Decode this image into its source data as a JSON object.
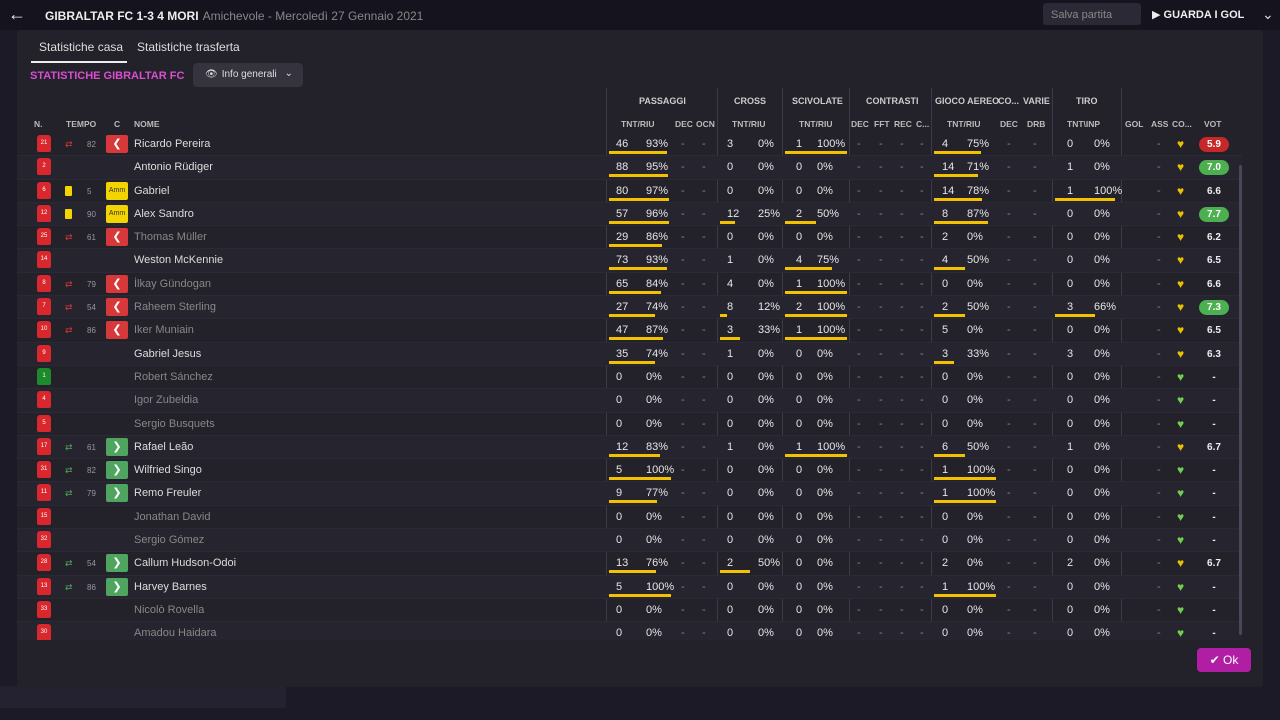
{
  "header": {
    "title": "GIBRALTAR FC 1-3 4 MORI",
    "subtitle": "Amichevole - Mercoledì 27 Gennaio 2021",
    "save_label": "Salva partita",
    "goals_label": "GUARDA I GOL"
  },
  "tabs": [
    "Statistiche casa",
    "Statistiche trasferta"
  ],
  "section_title": "STATISTICHE GIBRALTAR FC",
  "dropdown": {
    "value": "Info generali"
  },
  "groups": [
    "PASSAGGI",
    "CROSS",
    "SCIVOLATE",
    "CONTRASTI",
    "GIOCO AEREO",
    "CO...",
    "VARIE",
    "TIRO"
  ],
  "columns": [
    "N.",
    "TEMPO",
    "C",
    "NOME",
    "TNT/RIU",
    "DEC",
    "OCN",
    "TNT/RIU",
    "TNT/RIU",
    "DEC",
    "FFT",
    "REC",
    "C...",
    "TNT/RIU",
    "DEC",
    "DRB",
    "TNT\\INP",
    "GOL",
    "ASS",
    "CO...",
    "VOT"
  ],
  "ok_label": "Ok",
  "players": [
    {
      "num": "21",
      "time": "82",
      "name": "Ricardo Pereira",
      "pass": [
        "46",
        "93%"
      ],
      "cross": [
        "3",
        "0%"
      ],
      "sciv": [
        "1",
        "100%"
      ],
      "aereo": [
        "4",
        "75%"
      ],
      "tiro": [
        "0",
        "0%"
      ],
      "vote": "5.9",
      "vstyle": "red"
    },
    {
      "num": "2",
      "time": "",
      "name": "Antonio Rüdiger",
      "pass": [
        "88",
        "95%"
      ],
      "cross": [
        "0",
        "0%"
      ],
      "sciv": [
        "0",
        "0%"
      ],
      "aereo": [
        "14",
        "71%"
      ],
      "tiro": [
        "1",
        "0%"
      ],
      "vote": "7.0",
      "vstyle": "green"
    },
    {
      "num": "6",
      "time": "5",
      "name": "Gabriel",
      "pass": [
        "80",
        "97%"
      ],
      "cross": [
        "0",
        "0%"
      ],
      "sciv": [
        "0",
        "0%"
      ],
      "aereo": [
        "14",
        "78%"
      ],
      "tiro": [
        "1",
        "100%"
      ],
      "vote": "6.6",
      "vstyle": "plain"
    },
    {
      "num": "12",
      "time": "90",
      "name": "Alex Sandro",
      "pass": [
        "57",
        "96%"
      ],
      "cross": [
        "12",
        "25%"
      ],
      "sciv": [
        "2",
        "50%"
      ],
      "aereo": [
        "8",
        "87%"
      ],
      "tiro": [
        "0",
        "0%"
      ],
      "vote": "7.7",
      "vstyle": "green"
    },
    {
      "num": "25",
      "time": "61",
      "name": "Thomas Müller",
      "pass": [
        "29",
        "86%"
      ],
      "cross": [
        "0",
        "0%"
      ],
      "sciv": [
        "0",
        "0%"
      ],
      "aereo": [
        "2",
        "0%"
      ],
      "tiro": [
        "0",
        "0%"
      ],
      "vote": "6.2",
      "vstyle": "plain"
    },
    {
      "num": "14",
      "time": "",
      "name": "Weston McKennie",
      "pass": [
        "73",
        "93%"
      ],
      "cross": [
        "1",
        "0%"
      ],
      "sciv": [
        "4",
        "75%"
      ],
      "aereo": [
        "4",
        "50%"
      ],
      "tiro": [
        "0",
        "0%"
      ],
      "vote": "6.5",
      "vstyle": "plain"
    },
    {
      "num": "8",
      "time": "79",
      "name": "İlkay Gündogan",
      "pass": [
        "65",
        "84%"
      ],
      "cross": [
        "4",
        "0%"
      ],
      "sciv": [
        "1",
        "100%"
      ],
      "aereo": [
        "0",
        "0%"
      ],
      "tiro": [
        "0",
        "0%"
      ],
      "vote": "6.6",
      "vstyle": "plain"
    },
    {
      "num": "7",
      "time": "54",
      "name": "Raheem Sterling",
      "pass": [
        "27",
        "74%"
      ],
      "cross": [
        "8",
        "12%"
      ],
      "sciv": [
        "2",
        "100%"
      ],
      "aereo": [
        "2",
        "50%"
      ],
      "tiro": [
        "3",
        "66%"
      ],
      "vote": "7.3",
      "vstyle": "green"
    },
    {
      "num": "10",
      "time": "86",
      "name": "Iker Muniain",
      "pass": [
        "47",
        "87%"
      ],
      "cross": [
        "3",
        "33%"
      ],
      "sciv": [
        "1",
        "100%"
      ],
      "aereo": [
        "5",
        "0%"
      ],
      "tiro": [
        "0",
        "0%"
      ],
      "vote": "6.5",
      "vstyle": "plain"
    },
    {
      "num": "9",
      "time": "",
      "name": "Gabriel Jesus",
      "pass": [
        "35",
        "74%"
      ],
      "cross": [
        "1",
        "0%"
      ],
      "sciv": [
        "0",
        "0%"
      ],
      "aereo": [
        "3",
        "33%"
      ],
      "tiro": [
        "3",
        "0%"
      ],
      "vote": "6.3",
      "vstyle": "plain"
    },
    {
      "num": "1",
      "time": "",
      "name": "Robert Sánchez",
      "pass": [
        "0",
        "0%"
      ],
      "cross": [
        "0",
        "0%"
      ],
      "sciv": [
        "0",
        "0%"
      ],
      "aereo": [
        "0",
        "0%"
      ],
      "tiro": [
        "0",
        "0%"
      ],
      "vote": "-",
      "vstyle": "plain"
    },
    {
      "num": "4",
      "time": "",
      "name": "Igor Zubeldia",
      "pass": [
        "0",
        "0%"
      ],
      "cross": [
        "0",
        "0%"
      ],
      "sciv": [
        "0",
        "0%"
      ],
      "aereo": [
        "0",
        "0%"
      ],
      "tiro": [
        "0",
        "0%"
      ],
      "vote": "-",
      "vstyle": "plain"
    },
    {
      "num": "5",
      "time": "",
      "name": "Sergio Busquets",
      "pass": [
        "0",
        "0%"
      ],
      "cross": [
        "0",
        "0%"
      ],
      "sciv": [
        "0",
        "0%"
      ],
      "aereo": [
        "0",
        "0%"
      ],
      "tiro": [
        "0",
        "0%"
      ],
      "vote": "-",
      "vstyle": "plain"
    },
    {
      "num": "17",
      "time": "61",
      "name": "Rafael Leão",
      "pass": [
        "12",
        "83%"
      ],
      "cross": [
        "1",
        "0%"
      ],
      "sciv": [
        "1",
        "100%"
      ],
      "aereo": [
        "6",
        "50%"
      ],
      "tiro": [
        "1",
        "0%"
      ],
      "vote": "6.7",
      "vstyle": "plain"
    },
    {
      "num": "31",
      "time": "82",
      "name": "Wilfried Singo",
      "pass": [
        "5",
        "100%"
      ],
      "cross": [
        "0",
        "0%"
      ],
      "sciv": [
        "0",
        "0%"
      ],
      "aereo": [
        "1",
        "100%"
      ],
      "tiro": [
        "0",
        "0%"
      ],
      "vote": "-",
      "vstyle": "plain"
    },
    {
      "num": "11",
      "time": "79",
      "name": "Remo Freuler",
      "pass": [
        "9",
        "77%"
      ],
      "cross": [
        "0",
        "0%"
      ],
      "sciv": [
        "0",
        "0%"
      ],
      "aereo": [
        "1",
        "100%"
      ],
      "tiro": [
        "0",
        "0%"
      ],
      "vote": "-",
      "vstyle": "plain"
    },
    {
      "num": "15",
      "time": "",
      "name": "Jonathan David",
      "pass": [
        "0",
        "0%"
      ],
      "cross": [
        "0",
        "0%"
      ],
      "sciv": [
        "0",
        "0%"
      ],
      "aereo": [
        "0",
        "0%"
      ],
      "tiro": [
        "0",
        "0%"
      ],
      "vote": "-",
      "vstyle": "plain"
    },
    {
      "num": "32",
      "time": "",
      "name": "Sergio Gómez",
      "pass": [
        "0",
        "0%"
      ],
      "cross": [
        "0",
        "0%"
      ],
      "sciv": [
        "0",
        "0%"
      ],
      "aereo": [
        "0",
        "0%"
      ],
      "tiro": [
        "0",
        "0%"
      ],
      "vote": "-",
      "vstyle": "plain"
    },
    {
      "num": "28",
      "time": "54",
      "name": "Callum Hudson-Odoi",
      "pass": [
        "13",
        "76%"
      ],
      "cross": [
        "2",
        "50%"
      ],
      "sciv": [
        "0",
        "0%"
      ],
      "aereo": [
        "2",
        "0%"
      ],
      "tiro": [
        "2",
        "0%"
      ],
      "vote": "6.7",
      "vstyle": "plain"
    },
    {
      "num": "13",
      "time": "86",
      "name": "Harvey Barnes",
      "pass": [
        "5",
        "100%"
      ],
      "cross": [
        "0",
        "0%"
      ],
      "sciv": [
        "0",
        "0%"
      ],
      "aereo": [
        "1",
        "100%"
      ],
      "tiro": [
        "0",
        "0%"
      ],
      "vote": "-",
      "vstyle": "plain"
    },
    {
      "num": "33",
      "time": "",
      "name": "Nicolò Rovella",
      "pass": [
        "0",
        "0%"
      ],
      "cross": [
        "0",
        "0%"
      ],
      "sciv": [
        "0",
        "0%"
      ],
      "aereo": [
        "0",
        "0%"
      ],
      "tiro": [
        "0",
        "0%"
      ],
      "vote": "-",
      "vstyle": "plain"
    },
    {
      "num": "30",
      "time": "",
      "name": "Amadou Haidara",
      "pass": [
        "0",
        "0%"
      ],
      "cross": [
        "0",
        "0%"
      ],
      "sciv": [
        "0",
        "0%"
      ],
      "aereo": [
        "0",
        "0%"
      ],
      "tiro": [
        "0",
        "0%"
      ],
      "vote": "-",
      "vstyle": "plain"
    }
  ]
}
